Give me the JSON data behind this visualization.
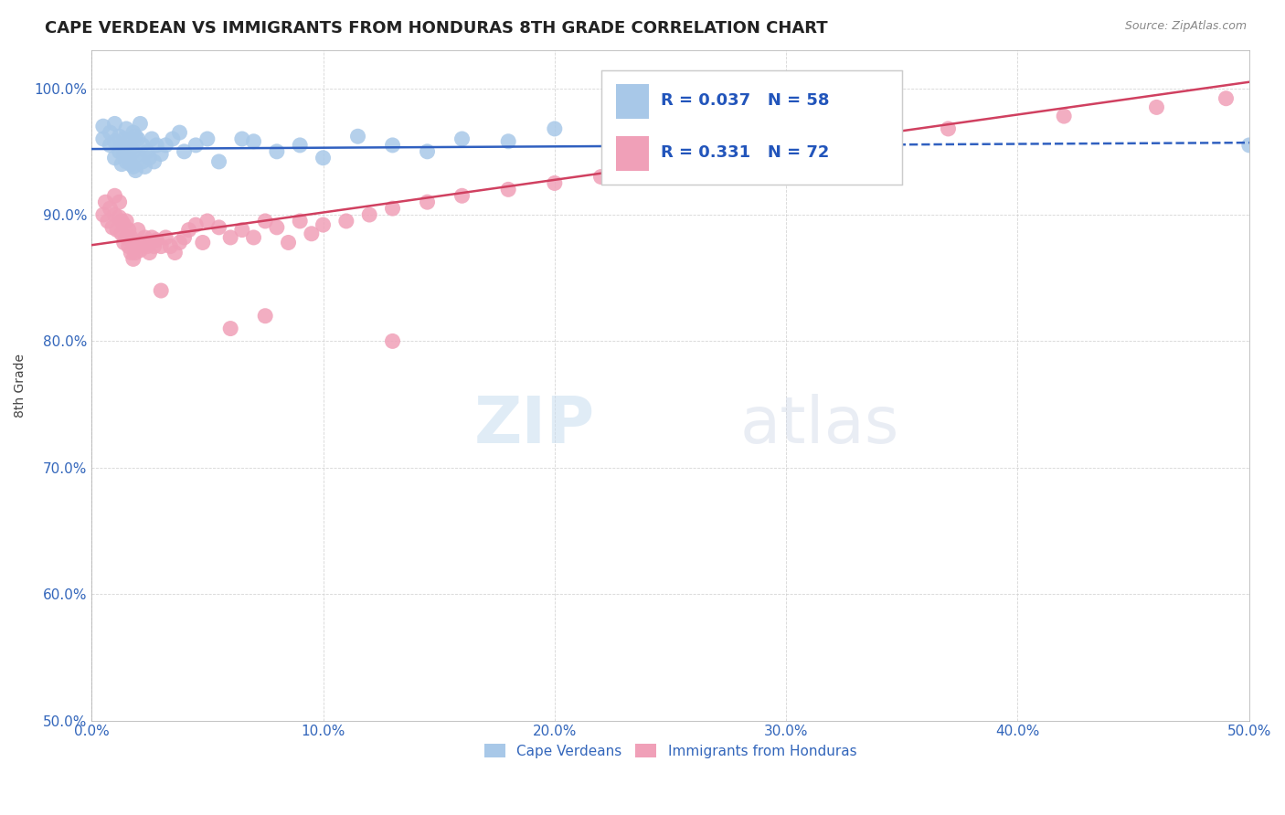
{
  "title": "CAPE VERDEAN VS IMMIGRANTS FROM HONDURAS 8TH GRADE CORRELATION CHART",
  "source": "Source: ZipAtlas.com",
  "ylabel": "8th Grade",
  "xmin": 0.0,
  "xmax": 0.5,
  "ymin": 0.5,
  "ymax": 1.03,
  "yticks": [
    0.5,
    0.6,
    0.7,
    0.8,
    0.9,
    1.0
  ],
  "ytick_labels": [
    "50.0%",
    "60.0%",
    "70.0%",
    "80.0%",
    "90.0%",
    "100.0%"
  ],
  "xticks": [
    0.0,
    0.1,
    0.2,
    0.3,
    0.4,
    0.5
  ],
  "xtick_labels": [
    "0.0%",
    "10.0%",
    "20.0%",
    "30.0%",
    "40.0%",
    "50.0%"
  ],
  "blue_R": 0.037,
  "blue_N": 58,
  "pink_R": 0.331,
  "pink_N": 72,
  "blue_color": "#a8c8e8",
  "pink_color": "#f0a0b8",
  "blue_line_color": "#3060c0",
  "pink_line_color": "#d04060",
  "blue_line_solid_end": 0.28,
  "legend_label_blue": "Cape Verdeans",
  "legend_label_pink": "Immigrants from Honduras",
  "watermark_zip": "ZIP",
  "watermark_atlas": "atlas",
  "blue_scatter_x": [
    0.005,
    0.005,
    0.008,
    0.008,
    0.01,
    0.01,
    0.01,
    0.012,
    0.012,
    0.013,
    0.013,
    0.014,
    0.014,
    0.015,
    0.015,
    0.015,
    0.016,
    0.016,
    0.017,
    0.017,
    0.018,
    0.018,
    0.018,
    0.019,
    0.019,
    0.02,
    0.02,
    0.021,
    0.022,
    0.022,
    0.023,
    0.024,
    0.025,
    0.026,
    0.027,
    0.028,
    0.03,
    0.032,
    0.035,
    0.038,
    0.04,
    0.045,
    0.05,
    0.055,
    0.065,
    0.07,
    0.08,
    0.09,
    0.1,
    0.115,
    0.13,
    0.145,
    0.16,
    0.18,
    0.2,
    0.24,
    0.29,
    0.5
  ],
  "blue_scatter_y": [
    0.96,
    0.97,
    0.955,
    0.965,
    0.945,
    0.958,
    0.972,
    0.95,
    0.962,
    0.94,
    0.955,
    0.948,
    0.96,
    0.942,
    0.953,
    0.968,
    0.945,
    0.958,
    0.94,
    0.952,
    0.965,
    0.938,
    0.95,
    0.962,
    0.935,
    0.948,
    0.96,
    0.972,
    0.942,
    0.955,
    0.938,
    0.95,
    0.945,
    0.96,
    0.942,
    0.955,
    0.948,
    0.955,
    0.96,
    0.965,
    0.95,
    0.955,
    0.96,
    0.942,
    0.96,
    0.958,
    0.95,
    0.955,
    0.945,
    0.962,
    0.955,
    0.95,
    0.96,
    0.958,
    0.968,
    0.958,
    0.952,
    0.955
  ],
  "pink_scatter_x": [
    0.005,
    0.006,
    0.007,
    0.008,
    0.009,
    0.01,
    0.01,
    0.011,
    0.012,
    0.012,
    0.013,
    0.013,
    0.014,
    0.014,
    0.015,
    0.015,
    0.016,
    0.016,
    0.017,
    0.017,
    0.018,
    0.018,
    0.019,
    0.02,
    0.02,
    0.021,
    0.022,
    0.023,
    0.024,
    0.025,
    0.026,
    0.027,
    0.028,
    0.03,
    0.032,
    0.034,
    0.036,
    0.038,
    0.04,
    0.042,
    0.045,
    0.048,
    0.05,
    0.055,
    0.06,
    0.065,
    0.07,
    0.075,
    0.08,
    0.085,
    0.09,
    0.095,
    0.1,
    0.11,
    0.12,
    0.13,
    0.145,
    0.16,
    0.18,
    0.2,
    0.22,
    0.25,
    0.28,
    0.32,
    0.37,
    0.42,
    0.46,
    0.49,
    0.13,
    0.075,
    0.06,
    0.03
  ],
  "pink_scatter_y": [
    0.9,
    0.91,
    0.895,
    0.905,
    0.89,
    0.9,
    0.915,
    0.888,
    0.898,
    0.91,
    0.885,
    0.895,
    0.878,
    0.892,
    0.882,
    0.895,
    0.875,
    0.888,
    0.87,
    0.882,
    0.865,
    0.878,
    0.87,
    0.875,
    0.888,
    0.872,
    0.878,
    0.882,
    0.875,
    0.87,
    0.882,
    0.875,
    0.88,
    0.875,
    0.882,
    0.875,
    0.87,
    0.878,
    0.882,
    0.888,
    0.892,
    0.878,
    0.895,
    0.89,
    0.882,
    0.888,
    0.882,
    0.895,
    0.89,
    0.878,
    0.895,
    0.885,
    0.892,
    0.895,
    0.9,
    0.905,
    0.91,
    0.915,
    0.92,
    0.925,
    0.93,
    0.94,
    0.95,
    0.96,
    0.968,
    0.978,
    0.985,
    0.992,
    0.8,
    0.82,
    0.81,
    0.84
  ],
  "blue_trend_x0": 0.0,
  "blue_trend_x1": 0.5,
  "blue_trend_y0": 0.952,
  "blue_trend_y1": 0.957,
  "pink_trend_x0": 0.0,
  "pink_trend_x1": 0.5,
  "pink_trend_y0": 0.876,
  "pink_trend_y1": 1.005
}
